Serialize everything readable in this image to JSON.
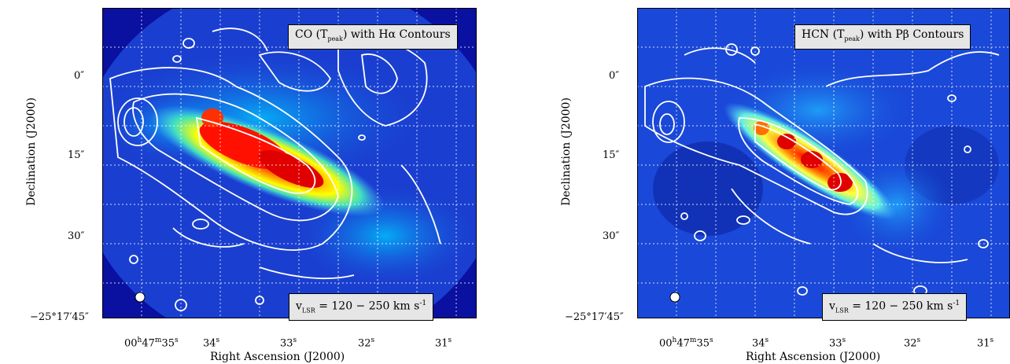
{
  "panels": [
    {
      "title": "CO (T",
      "title_sub": "peak",
      "title_tail": ") with Hα Contours",
      "vlsr_v": "v",
      "vlsr_sub": "LSR",
      "vlsr_text": " = 120 − 250 km s",
      "vlsr_sup": "-1",
      "xlabel": "Right Ascension (J2000)",
      "ylabel": "Declination (J2000)",
      "xticks": [
        {
          "main": "00",
          "h": "h",
          "m47": "47",
          "m": "m",
          "s35": "35",
          "s": "s"
        },
        {
          "main": "34",
          "s": "s"
        },
        {
          "main": "33",
          "s": "s"
        },
        {
          "main": "32",
          "s": "s"
        },
        {
          "main": "31",
          "s": "s"
        }
      ],
      "yticks": [
        "0″",
        "15″",
        "30″",
        "−25°17′45″"
      ]
    },
    {
      "title": "HCN (T",
      "title_sub": "peak",
      "title_tail": ") with Pβ Contours",
      "vlsr_v": "v",
      "vlsr_sub": "LSR",
      "vlsr_text": " = 120 − 250 km s",
      "vlsr_sup": "-1",
      "xlabel": "Right Ascension (J2000)",
      "ylabel": "Declination (J2000)",
      "xticks": [
        {
          "main": "00",
          "h": "h",
          "m47": "47",
          "m": "m",
          "s35": "35",
          "s": "s"
        },
        {
          "main": "34",
          "s": "s"
        },
        {
          "main": "33",
          "s": "s"
        },
        {
          "main": "32",
          "s": "s"
        },
        {
          "main": "31",
          "s": "s"
        }
      ],
      "yticks": [
        "0″",
        "15″",
        "30″",
        "−25°17′45″"
      ]
    }
  ],
  "colors": {
    "background_map": "#1a3fd0",
    "contour": "#ffffff",
    "grid": "#ffffff",
    "peak": "#e00000"
  }
}
